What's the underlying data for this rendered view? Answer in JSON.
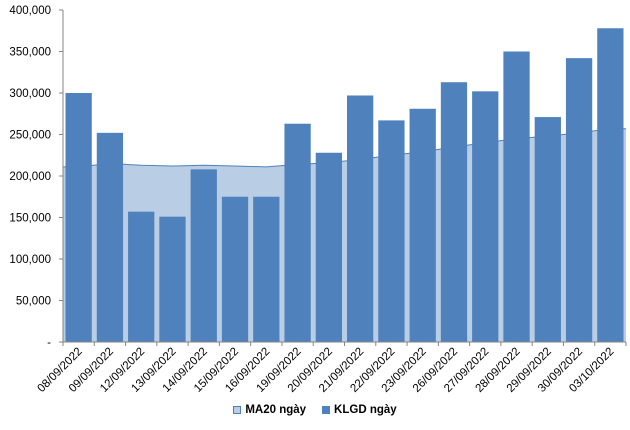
{
  "chart_data": {
    "type": "bar",
    "categories": [
      "08/09/2022",
      "09/09/2022",
      "12/09/2022",
      "13/09/2022",
      "14/09/2022",
      "15/09/2022",
      "16/09/2022",
      "19/09/2022",
      "20/09/2022",
      "21/09/2022",
      "22/09/2022",
      "23/09/2022",
      "26/09/2022",
      "27/09/2022",
      "28/09/2022",
      "29/09/2022",
      "30/09/2022",
      "03/10/2022"
    ],
    "series": [
      {
        "name": "MA20 ngày",
        "kind": "area",
        "color": "#b9cde5",
        "line_color": "#4f81bd",
        "values": [
          211000,
          215000,
          213000,
          212000,
          213000,
          212000,
          211000,
          214000,
          216000,
          220000,
          225000,
          229000,
          235000,
          240000,
          245000,
          248000,
          252000,
          257000
        ]
      },
      {
        "name": "KLGD ngày",
        "kind": "bar",
        "color": "#4f81bd",
        "values": [
          300000,
          252000,
          157000,
          151000,
          208000,
          175000,
          175000,
          263000,
          228000,
          297000,
          267000,
          281000,
          313000,
          302000,
          350000,
          271000,
          342000,
          378000
        ]
      }
    ],
    "y_ticks": [
      "-",
      "50,000",
      "100,000",
      "150,000",
      "200,000",
      "250,000",
      "300,000",
      "350,000",
      "400,000"
    ],
    "ylim": [
      0,
      400000
    ],
    "grid": false,
    "legend_position": "bottom"
  },
  "legend": {
    "ma_label": "MA20 ngày",
    "klgd_label": "KLGD ngày"
  }
}
